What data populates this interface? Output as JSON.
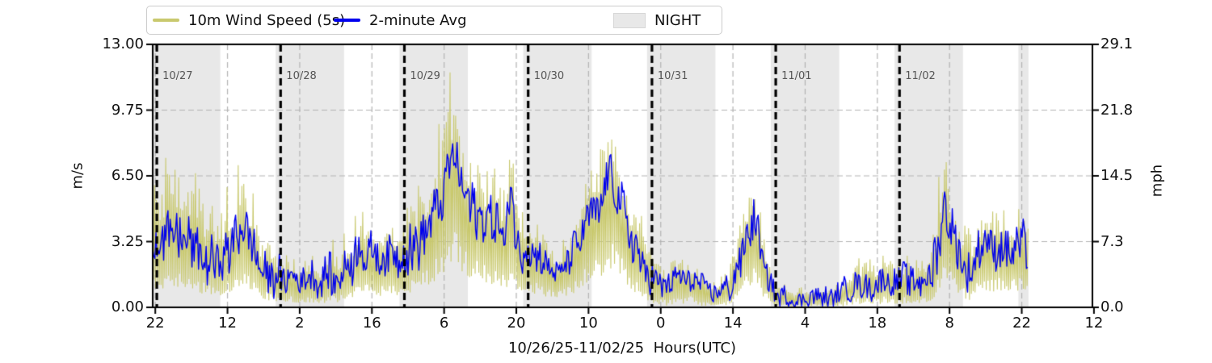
{
  "legend": {
    "items": [
      {
        "label": "10m Wind Speed (5s)",
        "swatch": "line",
        "color": "#c9c96e"
      },
      {
        "label": "2-minute Avg",
        "swatch": "line",
        "color": "#0000ee"
      },
      {
        "label": "NIGHT",
        "swatch": "patch",
        "color": "#e8e8e8"
      }
    ]
  },
  "axis": {
    "xlabel": "10/26/25-11/02/25  Hours(UTC)",
    "ylabel_left": "m/s",
    "ylabel_right": "mph",
    "x_tick_labels": [
      "22",
      "12",
      "2",
      "16",
      "6",
      "20",
      "10",
      "0",
      "14",
      "4",
      "18",
      "8",
      "22",
      "12"
    ],
    "x_tick_hours": [
      0,
      14,
      28,
      42,
      56,
      70,
      84,
      98,
      112,
      126,
      140,
      154,
      168,
      182
    ],
    "y_ticks_left": {
      "labels": [
        "0.00",
        "3.25",
        "6.50",
        "9.75",
        "13.00"
      ],
      "values": [
        0,
        3.25,
        6.5,
        9.75,
        13
      ]
    },
    "y_ticks_right": {
      "labels": [
        "0.0",
        "7.3",
        "14.5",
        "21.8",
        "29.1"
      ],
      "values": [
        0,
        3.25,
        6.5,
        9.75,
        13
      ]
    }
  },
  "annotations": {
    "day_lines": [
      {
        "label": "10/27",
        "hour": 0.3
      },
      {
        "label": "10/28",
        "hour": 24.3
      },
      {
        "label": "10/29",
        "hour": 48.3
      },
      {
        "label": "10/30",
        "hour": 72.3
      },
      {
        "label": "10/31",
        "hour": 96.3
      },
      {
        "label": "11/01",
        "hour": 120.3
      },
      {
        "label": "11/02",
        "hour": 144.3
      }
    ]
  },
  "night_bands": [
    [
      -0.5,
      12.6
    ],
    [
      23.35,
      36.6
    ],
    [
      47.35,
      60.6
    ],
    [
      71.35,
      84.6
    ],
    [
      95.35,
      108.6
    ],
    [
      119.35,
      132.6
    ],
    [
      143.35,
      156.6
    ],
    [
      167.35,
      169.3
    ]
  ],
  "chart_data": {
    "type": "line",
    "title": "",
    "x_unit": "hours since 2025-10-26 22:00 UTC",
    "xlim": [
      -0.5,
      181.7
    ],
    "ylim": [
      0,
      13
    ],
    "ylim_right_mph": [
      0,
      29.1
    ],
    "grid": true,
    "legend_position": "top",
    "data_range_hours": [
      -0.5,
      169.3
    ],
    "night_label": "NIGHT",
    "series": [
      {
        "name": "2-minute Avg",
        "role": "average",
        "color": "#0000ee",
        "hour_step": 1,
        "values": [
          3.3,
          3.5,
          3.6,
          3.7,
          3.5,
          3.6,
          3.4,
          3.1,
          2.8,
          2.7,
          2.6,
          2.5,
          2.4,
          2.5,
          2.8,
          3.2,
          3.8,
          4.2,
          3.6,
          2.8,
          2.2,
          1.9,
          1.8,
          1.7,
          1.6,
          1.5,
          1.5,
          1.4,
          1.3,
          1.3,
          1.4,
          1.3,
          1.2,
          1.4,
          1.5,
          1.5,
          1.6,
          1.8,
          2.0,
          2.4,
          2.9,
          2.6,
          2.6,
          2.5,
          2.4,
          2.6,
          2.4,
          2.5,
          2.6,
          2.8,
          3.0,
          3.3,
          3.6,
          4.2,
          4.6,
          5.2,
          6.1,
          7.1,
          7.6,
          6.6,
          5.6,
          5.2,
          4.9,
          4.6,
          4.3,
          4.1,
          4.0,
          3.6,
          3.3,
          6.2,
          3.4,
          3.1,
          2.9,
          2.8,
          2.7,
          2.4,
          2.1,
          1.9,
          1.8,
          2.0,
          2.3,
          2.8,
          3.4,
          4.0,
          4.5,
          4.8,
          5.1,
          5.8,
          6.8,
          6.0,
          5.3,
          4.8,
          3.4,
          2.9,
          2.5,
          2.0,
          1.6,
          1.3,
          1.1,
          1.0,
          1.1,
          1.4,
          1.2,
          1.3,
          1.4,
          1.2,
          1.0,
          0.9,
          0.7,
          0.6,
          0.7,
          1.0,
          1.5,
          2.2,
          3.0,
          3.8,
          4.2,
          3.4,
          2.2,
          1.3,
          0.8,
          0.6,
          0.5,
          0.4,
          0.4,
          0.4,
          0.4,
          0.5,
          0.5,
          0.5,
          0.4,
          0.4,
          0.5,
          0.7,
          1.0,
          1.1,
          1.3,
          1.2,
          1.3,
          1.1,
          1.2,
          1.3,
          1.4,
          1.2,
          1.2,
          1.3,
          1.3,
          1.1,
          1.1,
          1.3,
          1.6,
          2.2,
          3.5,
          5.0,
          4.2,
          3.2,
          2.6,
          2.0,
          1.6,
          2.6,
          2.9,
          3.1,
          3.2,
          3.0,
          3.3,
          3.1,
          2.9,
          3.0,
          3.2,
          2.8
        ]
      },
      {
        "name": "10m Wind Speed (5s)",
        "role": "gust-envelope-max",
        "color": "#c9c96e",
        "hour_step": 1,
        "values": [
          6.5,
          6.2,
          7.5,
          9.5,
          8.2,
          8.6,
          8.3,
          7.2,
          6.6,
          6.1,
          5.6,
          5.1,
          5.2,
          5.6,
          6.1,
          6.6,
          7.2,
          7.4,
          6.8,
          5.6,
          4.7,
          4.2,
          4.0,
          3.7,
          3.4,
          3.2,
          3.1,
          3.0,
          2.8,
          3.0,
          3.2,
          2.9,
          2.7,
          3.3,
          3.6,
          3.4,
          3.6,
          3.9,
          4.3,
          4.7,
          5.4,
          5.0,
          4.8,
          4.6,
          4.5,
          4.8,
          4.5,
          4.8,
          5.3,
          5.7,
          6.1,
          6.5,
          6.7,
          7.3,
          8.1,
          9.2,
          10.6,
          12.2,
          11.4,
          10.0,
          9.3,
          8.2,
          7.5,
          7.0,
          7.0,
          7.4,
          8.6,
          6.6,
          5.6,
          9.3,
          6.0,
          5.3,
          4.9,
          4.5,
          4.2,
          3.8,
          3.4,
          3.1,
          2.9,
          3.3,
          3.8,
          4.5,
          5.3,
          6.1,
          6.7,
          7.1,
          7.7,
          8.4,
          8.5,
          8.2,
          7.5,
          7.0,
          6.4,
          5.8,
          5.2,
          4.4,
          3.7,
          3.1,
          2.7,
          2.4,
          2.3,
          2.6,
          2.4,
          2.5,
          2.6,
          2.3,
          2.0,
          1.8,
          1.5,
          1.4,
          1.6,
          2.3,
          3.2,
          4.3,
          5.3,
          6.1,
          6.4,
          5.2,
          3.7,
          2.5,
          1.7,
          1.4,
          1.2,
          1.1,
          1.0,
          1.0,
          1.1,
          1.2,
          1.3,
          1.2,
          1.1,
          1.0,
          1.3,
          1.7,
          2.1,
          2.2,
          2.4,
          2.5,
          2.6,
          2.3,
          2.5,
          2.6,
          2.8,
          2.5,
          2.6,
          2.7,
          2.6,
          2.3,
          2.5,
          3.0,
          3.9,
          5.1,
          6.6,
          8.0,
          7.1,
          5.9,
          4.8,
          4.2,
          3.9,
          4.5,
          4.9,
          5.3,
          5.5,
          5.4,
          5.9,
          6.2,
          5.5,
          5.2,
          5.5,
          4.6
        ]
      }
    ]
  },
  "style": {
    "wind_color": "#c9c96e",
    "avg_color": "#0000ee",
    "night_color": "#e8e8e8",
    "grid_color": "#b3b3b3",
    "day_line_color": "#000000",
    "spine_color": "#000000",
    "date_label_color": "#555555",
    "background": "#ffffff"
  }
}
